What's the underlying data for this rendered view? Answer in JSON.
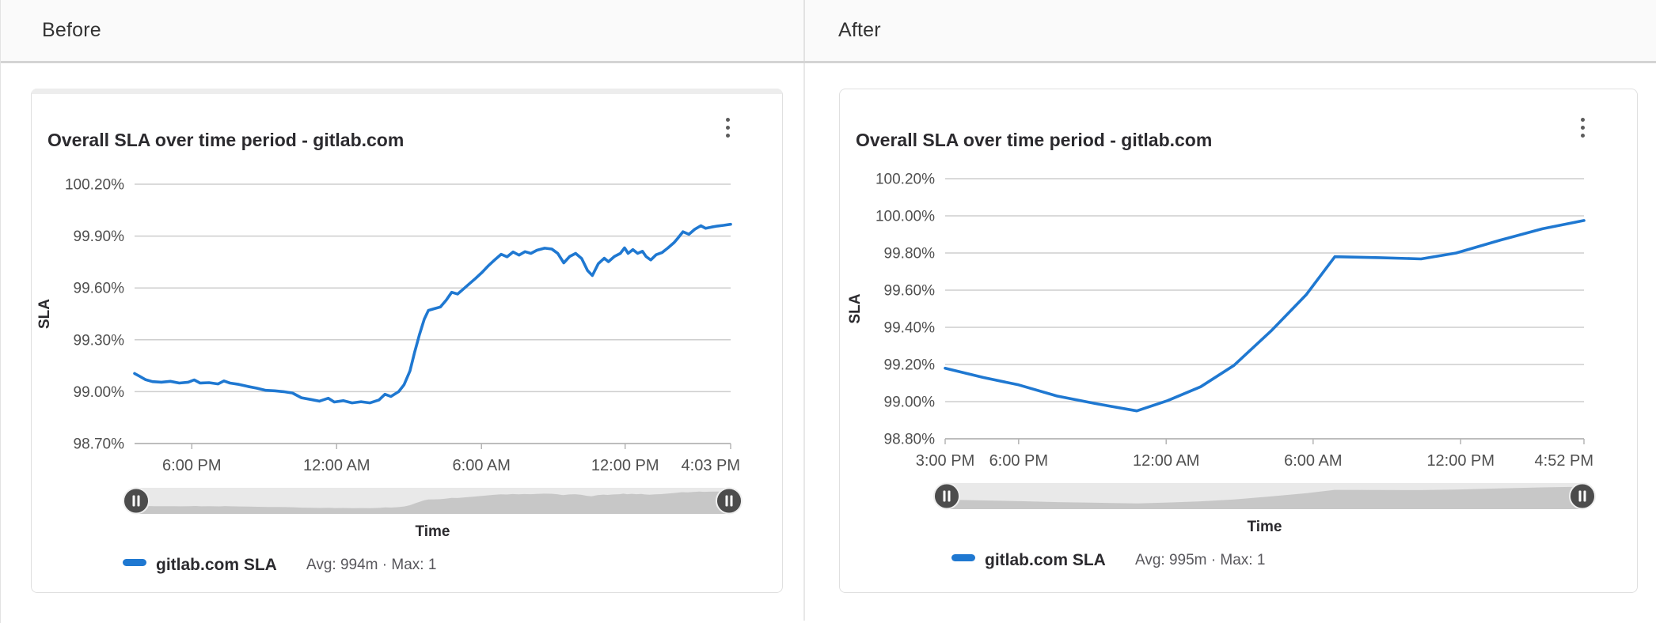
{
  "compare_header": {
    "before_label": "Before",
    "after_label": "After"
  },
  "colors": {
    "series_blue": "#1f78d1",
    "gridline": "#cdcdcd",
    "scrubber_track": "#e9e9e9",
    "scrubber_area": "#c7c7c7",
    "scrubber_handle": "#4c4c4c"
  },
  "panels": [
    {
      "id": "before",
      "card": {
        "title": "Overall SLA over time period - gitlab.com",
        "menu_icon": "kebab-menu-icon"
      },
      "chart_data": {
        "type": "line",
        "title": "Overall SLA over time period - gitlab.com",
        "xlabel": "Time",
        "ylabel": "SLA",
        "grid": true,
        "legend_position": "bottom",
        "ylim": [
          98.7,
          100.2
        ],
        "y_ticks": [
          {
            "label": "100.20%",
            "value": 100.2
          },
          {
            "label": "99.90%",
            "value": 99.9
          },
          {
            "label": "99.60%",
            "value": 99.6
          },
          {
            "label": "99.30%",
            "value": 99.3
          },
          {
            "label": "99.00%",
            "value": 99.0
          },
          {
            "label": "98.70%",
            "value": 98.7
          }
        ],
        "x_ticks": [
          {
            "label": "6:00 PM",
            "f": 0.096
          },
          {
            "label": "12:00 AM",
            "f": 0.339
          },
          {
            "label": "6:00 AM",
            "f": 0.582
          },
          {
            "label": "12:00 PM",
            "f": 0.823
          },
          {
            "label": "4:03 PM",
            "f": 1.0,
            "align": "end"
          }
        ],
        "series": [
          {
            "name": "gitlab.com SLA",
            "stats": "Avg: 994m · Max: 1",
            "color": "#1f78d1",
            "points": [
              [
                0,
                99.105
              ],
              [
                0.008,
                99.09
              ],
              [
                0.018,
                99.07
              ],
              [
                0.03,
                99.058
              ],
              [
                0.045,
                99.055
              ],
              [
                0.06,
                99.06
              ],
              [
                0.075,
                99.05
              ],
              [
                0.09,
                99.055
              ],
              [
                0.1,
                99.068
              ],
              [
                0.11,
                99.05
              ],
              [
                0.125,
                99.052
              ],
              [
                0.14,
                99.045
              ],
              [
                0.15,
                99.062
              ],
              [
                0.16,
                99.05
              ],
              [
                0.175,
                99.042
              ],
              [
                0.19,
                99.03
              ],
              [
                0.205,
                99.02
              ],
              [
                0.22,
                99.008
              ],
              [
                0.235,
                99.005
              ],
              [
                0.25,
                99.0
              ],
              [
                0.265,
                98.992
              ],
              [
                0.28,
                98.965
              ],
              [
                0.295,
                98.955
              ],
              [
                0.31,
                98.945
              ],
              [
                0.325,
                98.962
              ],
              [
                0.335,
                98.94
              ],
              [
                0.35,
                98.948
              ],
              [
                0.365,
                98.935
              ],
              [
                0.38,
                98.942
              ],
              [
                0.395,
                98.935
              ],
              [
                0.41,
                98.952
              ],
              [
                0.42,
                98.985
              ],
              [
                0.43,
                98.972
              ],
              [
                0.443,
                99.0
              ],
              [
                0.452,
                99.04
              ],
              [
                0.462,
                99.12
              ],
              [
                0.47,
                99.23
              ],
              [
                0.478,
                99.33
              ],
              [
                0.486,
                99.42
              ],
              [
                0.493,
                99.47
              ],
              [
                0.503,
                99.48
              ],
              [
                0.513,
                99.49
              ],
              [
                0.523,
                99.53
              ],
              [
                0.532,
                99.575
              ],
              [
                0.542,
                99.565
              ],
              [
                0.552,
                99.595
              ],
              [
                0.562,
                99.625
              ],
              [
                0.572,
                99.655
              ],
              [
                0.583,
                99.69
              ],
              [
                0.594,
                99.73
              ],
              [
                0.605,
                99.765
              ],
              [
                0.615,
                99.795
              ],
              [
                0.625,
                99.78
              ],
              [
                0.635,
                99.808
              ],
              [
                0.645,
                99.79
              ],
              [
                0.655,
                99.81
              ],
              [
                0.665,
                99.8
              ],
              [
                0.675,
                99.818
              ],
              [
                0.688,
                99.83
              ],
              [
                0.7,
                99.825
              ],
              [
                0.71,
                99.8
              ],
              [
                0.72,
                99.745
              ],
              [
                0.73,
                99.782
              ],
              [
                0.74,
                99.8
              ],
              [
                0.75,
                99.77
              ],
              [
                0.76,
                99.7
              ],
              [
                0.768,
                99.672
              ],
              [
                0.778,
                99.74
              ],
              [
                0.788,
                99.772
              ],
              [
                0.795,
                99.752
              ],
              [
                0.805,
                99.782
              ],
              [
                0.815,
                99.8
              ],
              [
                0.822,
                99.832
              ],
              [
                0.828,
                99.8
              ],
              [
                0.836,
                99.822
              ],
              [
                0.844,
                99.8
              ],
              [
                0.852,
                99.812
              ],
              [
                0.858,
                99.782
              ],
              [
                0.866,
                99.762
              ],
              [
                0.875,
                99.792
              ],
              [
                0.885,
                99.805
              ],
              [
                0.895,
                99.832
              ],
              [
                0.905,
                99.862
              ],
              [
                0.912,
                99.89
              ],
              [
                0.92,
                99.925
              ],
              [
                0.93,
                99.91
              ],
              [
                0.94,
                99.94
              ],
              [
                0.95,
                99.96
              ],
              [
                0.958,
                99.945
              ],
              [
                0.968,
                99.952
              ],
              [
                0.978,
                99.958
              ],
              [
                0.988,
                99.962
              ],
              [
                1,
                99.968
              ]
            ]
          }
        ]
      }
    },
    {
      "id": "after",
      "card": {
        "title": "Overall SLA over time period - gitlab.com",
        "menu_icon": "kebab-menu-icon"
      },
      "chart_data": {
        "type": "line",
        "title": "Overall SLA over time period - gitlab.com",
        "xlabel": "Time",
        "ylabel": "SLA",
        "grid": true,
        "legend_position": "bottom",
        "ylim": [
          98.8,
          100.2
        ],
        "y_ticks": [
          {
            "label": "100.20%",
            "value": 100.2
          },
          {
            "label": "100.00%",
            "value": 100.0
          },
          {
            "label": "99.80%",
            "value": 99.8
          },
          {
            "label": "99.60%",
            "value": 99.6
          },
          {
            "label": "99.40%",
            "value": 99.4
          },
          {
            "label": "99.20%",
            "value": 99.2
          },
          {
            "label": "99.00%",
            "value": 99.0
          },
          {
            "label": "98.80%",
            "value": 98.8
          }
        ],
        "x_ticks": [
          {
            "label": "3:00 PM",
            "f": 0.0
          },
          {
            "label": "6:00 PM",
            "f": 0.115
          },
          {
            "label": "12:00 AM",
            "f": 0.346
          },
          {
            "label": "6:00 AM",
            "f": 0.576
          },
          {
            "label": "12:00 PM",
            "f": 0.807
          },
          {
            "label": "4:52 PM",
            "f": 1.0,
            "align": "end"
          }
        ],
        "series": [
          {
            "name": "gitlab.com SLA",
            "stats": "Avg: 995m · Max: 1",
            "color": "#1f78d1",
            "points": [
              [
                0,
                99.18
              ],
              [
                0.06,
                99.13
              ],
              [
                0.115,
                99.09
              ],
              [
                0.175,
                99.03
              ],
              [
                0.235,
                98.99
              ],
              [
                0.3,
                98.95
              ],
              [
                0.348,
                99.005
              ],
              [
                0.4,
                99.08
              ],
              [
                0.452,
                99.195
              ],
              [
                0.51,
                99.38
              ],
              [
                0.565,
                99.575
              ],
              [
                0.61,
                99.78
              ],
              [
                0.68,
                99.775
              ],
              [
                0.745,
                99.768
              ],
              [
                0.8,
                99.8
              ],
              [
                0.87,
                99.87
              ],
              [
                0.935,
                99.93
              ],
              [
                1,
                99.975
              ]
            ]
          }
        ]
      }
    }
  ]
}
